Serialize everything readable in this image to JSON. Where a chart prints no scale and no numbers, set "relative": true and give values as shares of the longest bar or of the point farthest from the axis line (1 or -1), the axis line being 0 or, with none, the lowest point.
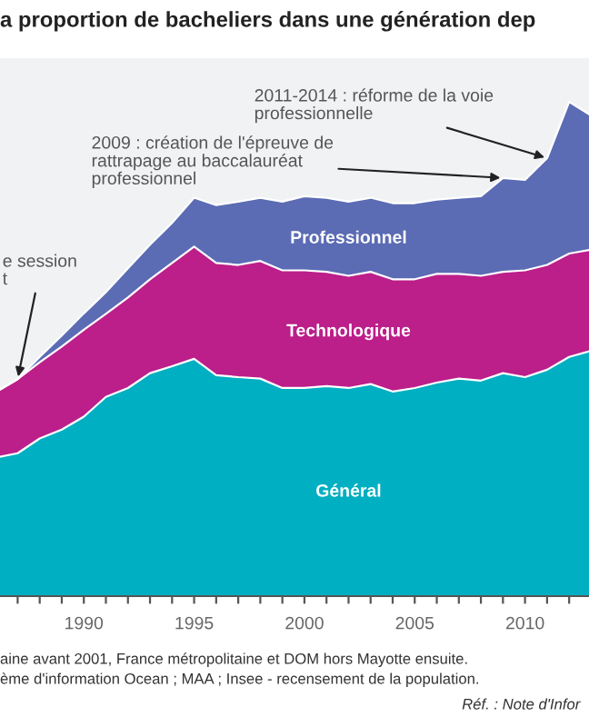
{
  "chart_data": {
    "type": "area",
    "stacked": true,
    "relative": true,
    "title": "a proportion de bacheliers dans une génération dep",
    "x": [
      1986.2,
      1987,
      1988,
      1989,
      1990,
      1991,
      1992,
      1993,
      1994,
      1995,
      1996,
      1997,
      1998,
      1999,
      2000,
      2001,
      2002,
      2003,
      2004,
      2005,
      2006,
      2007,
      2008,
      2009,
      2010,
      2011,
      2012,
      2012.9
    ],
    "series": [
      {
        "name": "Général",
        "color": "#00afc1",
        "values": [
          0.282,
          0.289,
          0.319,
          0.337,
          0.363,
          0.403,
          0.421,
          0.451,
          0.465,
          0.48,
          0.447,
          0.443,
          0.44,
          0.421,
          0.421,
          0.425,
          0.421,
          0.429,
          0.414,
          0.421,
          0.432,
          0.44,
          0.436,
          0.451,
          0.443,
          0.458,
          0.484,
          0.495
        ]
      },
      {
        "name": "Technologique",
        "color": "#bc1e8a",
        "values": [
          0.136,
          0.15,
          0.154,
          0.168,
          0.176,
          0.168,
          0.183,
          0.19,
          0.209,
          0.227,
          0.227,
          0.227,
          0.238,
          0.238,
          0.238,
          0.231,
          0.227,
          0.227,
          0.227,
          0.22,
          0.22,
          0.212,
          0.212,
          0.205,
          0.216,
          0.212,
          0.209,
          0.205
        ]
      },
      {
        "name": "Professionnel",
        "color": "#5b6bb4",
        "values": [
          0,
          0,
          0.011,
          0.022,
          0.033,
          0.044,
          0.059,
          0.07,
          0.081,
          0.099,
          0.117,
          0.128,
          0.128,
          0.139,
          0.15,
          0.15,
          0.15,
          0.15,
          0.154,
          0.154,
          0.15,
          0.154,
          0.161,
          0.19,
          0.183,
          0.216,
          0.307,
          0.275
        ]
      }
    ],
    "xlim": [
      1986.2,
      2012.9
    ],
    "xticks": [
      {
        "value": 1987,
        "label": null
      },
      {
        "value": 1988,
        "label": null
      },
      {
        "value": 1989,
        "label": null
      },
      1990,
      {
        "value": 1991,
        "label": null
      },
      {
        "value": 1992,
        "label": null
      },
      {
        "value": 1993,
        "label": null
      },
      {
        "value": 1994,
        "label": null
      },
      1995,
      {
        "value": 1996,
        "label": null
      },
      {
        "value": 1997,
        "label": null
      },
      {
        "value": 1998,
        "label": null
      },
      {
        "value": 1999,
        "label": null
      },
      2000,
      {
        "value": 2001,
        "label": null
      },
      {
        "value": 2002,
        "label": null
      },
      {
        "value": 2003,
        "label": null
      },
      {
        "value": 2004,
        "label": null
      },
      2005,
      {
        "value": 2006,
        "label": null
      },
      {
        "value": 2007,
        "label": null
      },
      {
        "value": 2008,
        "label": null
      },
      {
        "value": 2009,
        "label": null
      },
      2010,
      {
        "value": 2011,
        "label": null
      },
      {
        "value": 2012,
        "label": null
      }
    ],
    "annotations": [
      {
        "text": "2011-2014 : réforme de la voie\nprofessionnelle",
        "x": 2011,
        "y": 0.886
      },
      {
        "text": "2009 : création de l'épreuve de\nrattrapage au baccalauréat\nprofessionnel",
        "x": 2009,
        "y": 0.846
      },
      {
        "text": "e session\nt",
        "x": 1987,
        "y": 0.439
      },
      "aine avant 2001, France métropolitaine et DOM hors Mayotte ensuite.",
      "ème d'information Ocean ; MAA ; Insee - recensement de la population.",
      "Réf. : Note d'Infor"
    ],
    "legend": false
  }
}
